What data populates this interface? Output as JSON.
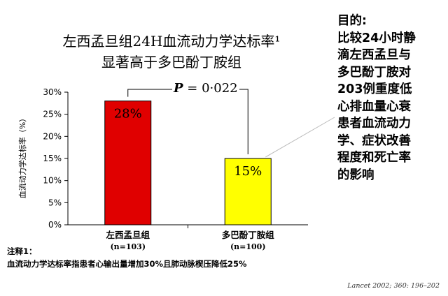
{
  "title_lines": [
    "左西孟旦组24H血流动力学达标率¹",
    "显著高于多巴酚丁胺组"
  ],
  "aside": {
    "lines": [
      "目的:",
      "比较24小时静",
      "滴左西孟旦与",
      "多巴酚丁胺对",
      "203例重度低",
      "心排血量心衰",
      "患者血流动力",
      "学、症状改善",
      "程度和死亡率",
      "的影响"
    ]
  },
  "p_value": {
    "label": "P",
    "text": "= 0·022"
  },
  "note": {
    "heading": "注释1：",
    "text": "血流动力学达标率指患者心输出量增加30%且肺动脉楔压降低25%"
  },
  "source": "Lancet 2002; 360: 196–202",
  "chart_data": {
    "type": "bar",
    "ylabel": "血流动力学达标率（%）",
    "ylim": [
      0,
      30
    ],
    "yticks": [
      "0%",
      "5%",
      "10%",
      "15%",
      "20%",
      "25%",
      "30%"
    ],
    "categories": [
      {
        "name": "左西孟旦组",
        "n": "(n=103)"
      },
      {
        "name": "多巴酚丁胺组",
        "n": "(n=100)"
      }
    ],
    "values": [
      28,
      15
    ],
    "value_labels": [
      "28%",
      "15%"
    ],
    "colors": [
      "#e00000",
      "#ffff00"
    ],
    "grid": false
  }
}
